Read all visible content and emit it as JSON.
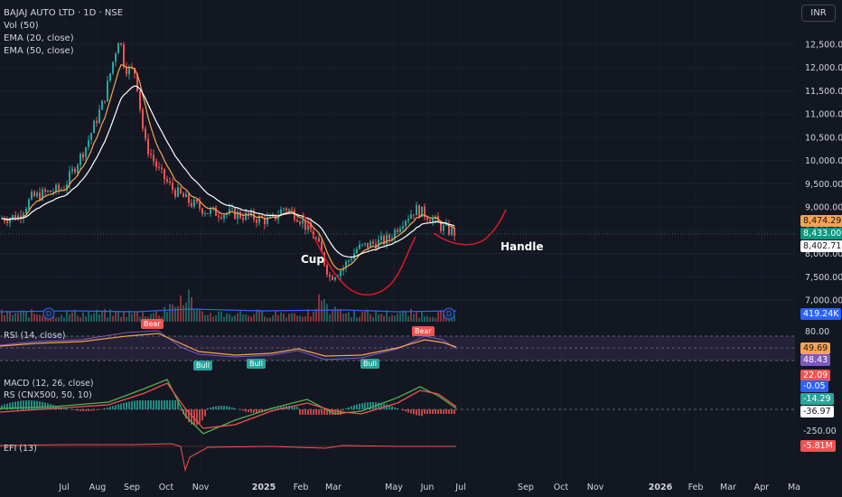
{
  "header": {
    "symbol_line": "BAJAJ AUTO LTD · 1D · NSE",
    "indicators": [
      "Vol (50)",
      "EMA (20, close)",
      "EMA (50, close)"
    ],
    "currency_button": "INR"
  },
  "annotations": {
    "cup": "Cup",
    "handle": "Handle"
  },
  "panes": {
    "rsi_label": "RSI (14, close)",
    "macd_label": "MACD (12, 26, close)",
    "rs_label": "RS (CNX500, 50, 10)",
    "efi_label": "EFI (13)"
  },
  "signals": {
    "bull": "Bull",
    "bear": "Bear",
    "marker_d": "D"
  },
  "price_tags": {
    "ema20": "8,474.29",
    "last": "8,433.00",
    "ema50": "8,402.71",
    "volume": "419.24K",
    "rsi_upper": "80.00",
    "rsi_val": "49.69",
    "rsi_ma": "48.43",
    "macd_a": "22.09",
    "macd_b": "-0.05",
    "rs_a": "-14.29",
    "rs_b": "-36.97",
    "macd_low": "-250.00",
    "efi": "-5.81M"
  },
  "colors": {
    "background": "#131722",
    "up": "#26a69a",
    "down": "#ef5350",
    "ema20": "#f7a350",
    "ema50": "#ffffff",
    "volume_ma": "#2962ff",
    "rsi": "#7e57c2",
    "rsi_ma": "#f7a350",
    "rsi_band": "#3a2f57",
    "cup_curve": "#e0162b"
  },
  "chart_data": {
    "type": "candlestick",
    "title": "BAJAJ AUTO LTD · 1D · NSE",
    "y_ticks": [
      "12,500.00",
      "12,000.00",
      "11,500.00",
      "11,000.00",
      "10,500.00",
      "10,000.00",
      "9,500.00",
      "9,000.00",
      "8,500.00",
      "8,000.00",
      "7,500.00",
      "7,000.00"
    ],
    "y_tick_values": [
      12500,
      12000,
      11500,
      11000,
      10500,
      10000,
      9500,
      9000,
      8500,
      8000,
      7500,
      7000
    ],
    "x_ticks": [
      "Jul",
      "Aug",
      "Sep",
      "Oct",
      "Nov",
      "2025",
      "Feb",
      "Mar",
      "May",
      "Jun",
      "Jul",
      "Sep",
      "Oct",
      "Nov",
      "2026",
      "Feb",
      "Mar",
      "Apr",
      "Ma"
    ],
    "close_path": [
      [
        "Jun",
        8750
      ],
      [
        "Jul",
        9200
      ],
      [
        "Aug",
        9400
      ],
      [
        "early Sep",
        10100
      ],
      [
        "mid Sep",
        11200
      ],
      [
        "late Sep",
        12700
      ],
      [
        "Oct",
        11900
      ],
      [
        "mid Oct",
        10400
      ],
      [
        "Nov",
        9700
      ],
      [
        "Dec",
        9000
      ],
      [
        "2025",
        8700
      ],
      [
        "Feb",
        8950
      ],
      [
        "late Feb",
        8600
      ],
      [
        "Mar",
        7500
      ],
      [
        "Apr",
        8100
      ],
      [
        "May",
        8400
      ],
      [
        "late May",
        8950
      ],
      [
        "Jun",
        8700
      ],
      [
        "late Jun",
        8433
      ]
    ],
    "last_price": 8433.0,
    "ema20_last": 8474.29,
    "ema50_last": 8402.71,
    "volume_ma_last": "419.24K",
    "rsi": {
      "value": 49.69,
      "ma": 48.43,
      "upper": 80.0
    },
    "macd_values": [
      22.09,
      -0.05
    ],
    "rs_values": [
      -14.29,
      -36.97
    ],
    "efi_value": "-5.81M",
    "ylim": [
      6900,
      12800
    ]
  }
}
